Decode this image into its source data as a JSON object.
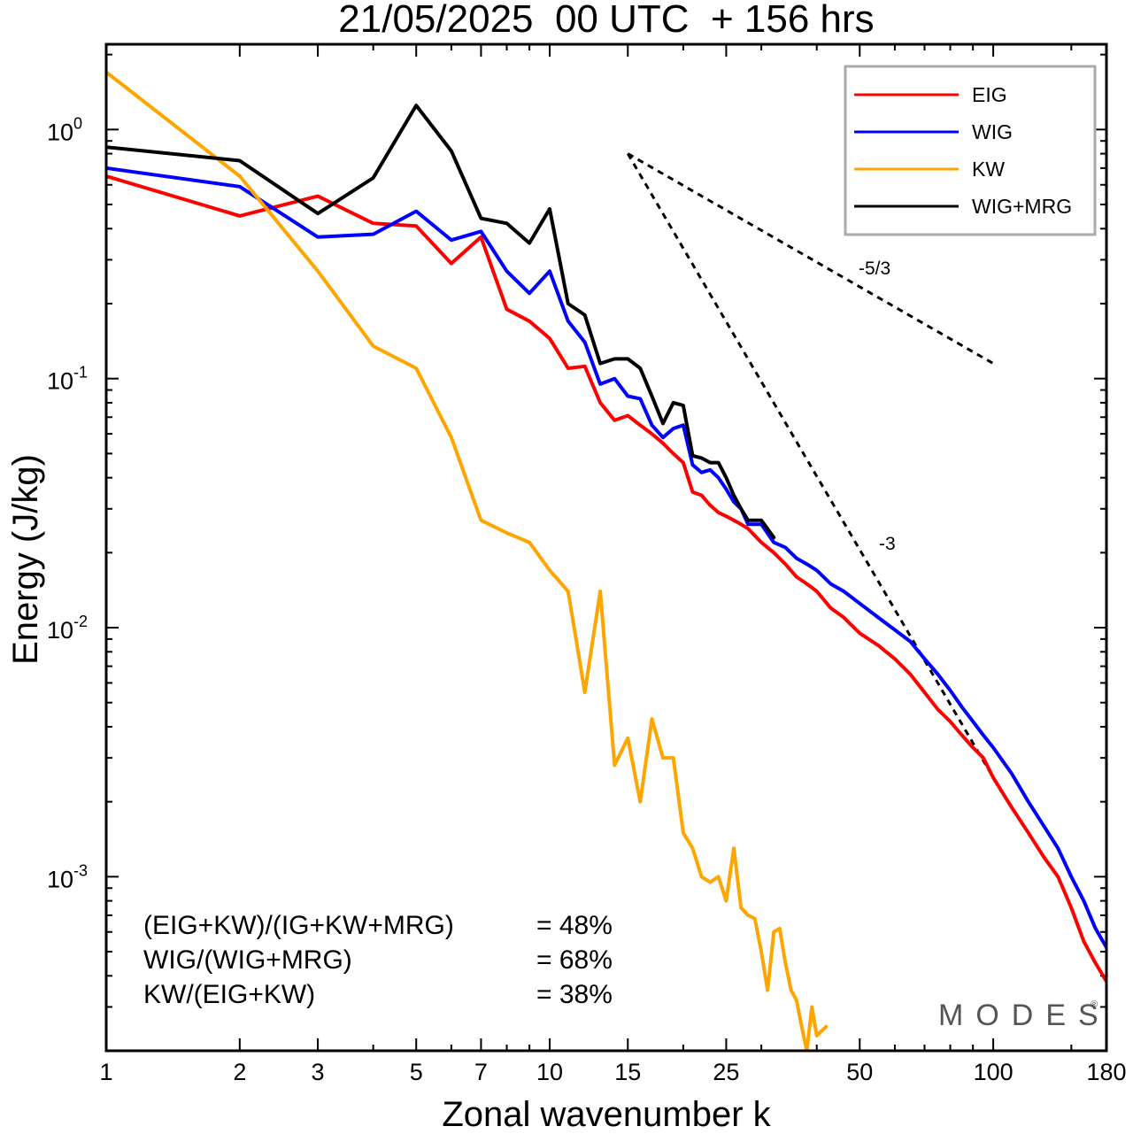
{
  "chart_data": {
    "type": "line",
    "title": "21/05/2025  00 UTC  + 156 hrs",
    "xlabel": "Zonal wavenumber k",
    "ylabel": "Energy (J/kg)",
    "xscale": "log",
    "yscale": "log",
    "xlim": [
      1,
      180
    ],
    "ylim": [
      0.0002,
      2.2
    ],
    "x_ticks": [
      1,
      2,
      3,
      5,
      7,
      10,
      15,
      25,
      50,
      100,
      180
    ],
    "y_ticks": [
      {
        "base": "10",
        "exp": "0",
        "value": 1
      },
      {
        "base": "10",
        "exp": "-1",
        "value": 0.1
      },
      {
        "base": "10",
        "exp": "-2",
        "value": 0.01
      },
      {
        "base": "10",
        "exp": "-3",
        "value": 0.001
      }
    ],
    "grid": false,
    "legend_position": "top-right",
    "series": [
      {
        "name": "EIG",
        "color": "#ff0000",
        "points": [
          [
            1,
            0.65
          ],
          [
            2,
            0.45
          ],
          [
            3,
            0.54
          ],
          [
            4,
            0.42
          ],
          [
            5,
            0.41
          ],
          [
            6,
            0.29
          ],
          [
            7,
            0.37
          ],
          [
            8,
            0.19
          ],
          [
            9,
            0.17
          ],
          [
            10,
            0.145
          ],
          [
            11,
            0.11
          ],
          [
            12,
            0.112
          ],
          [
            13,
            0.08
          ],
          [
            14,
            0.068
          ],
          [
            15,
            0.071
          ],
          [
            16,
            0.065
          ],
          [
            17,
            0.06
          ],
          [
            18,
            0.055
          ],
          [
            19,
            0.05
          ],
          [
            20,
            0.046
          ],
          [
            21,
            0.035
          ],
          [
            22,
            0.034
          ],
          [
            23,
            0.031
          ],
          [
            24,
            0.029
          ],
          [
            25,
            0.028
          ],
          [
            26,
            0.027
          ],
          [
            27,
            0.026
          ],
          [
            28,
            0.025
          ],
          [
            30,
            0.022
          ],
          [
            32,
            0.02
          ],
          [
            34,
            0.018
          ],
          [
            36,
            0.016
          ],
          [
            38,
            0.015
          ],
          [
            40,
            0.014
          ],
          [
            43,
            0.012
          ],
          [
            46,
            0.011
          ],
          [
            50,
            0.0095
          ],
          [
            55,
            0.0085
          ],
          [
            60,
            0.0075
          ],
          [
            65,
            0.0065
          ],
          [
            70,
            0.0055
          ],
          [
            75,
            0.0047
          ],
          [
            80,
            0.0042
          ],
          [
            85,
            0.0037
          ],
          [
            90,
            0.0033
          ],
          [
            95,
            0.003
          ],
          [
            100,
            0.0025
          ],
          [
            110,
            0.0019
          ],
          [
            120,
            0.0015
          ],
          [
            130,
            0.0012
          ],
          [
            140,
            0.001
          ],
          [
            150,
            0.00075
          ],
          [
            160,
            0.00055
          ],
          [
            170,
            0.00045
          ],
          [
            180,
            0.00038
          ]
        ]
      },
      {
        "name": "WIG",
        "color": "#0000ff",
        "points": [
          [
            1,
            0.7
          ],
          [
            2,
            0.59
          ],
          [
            3,
            0.37
          ],
          [
            4,
            0.38
          ],
          [
            5,
            0.47
          ],
          [
            6,
            0.36
          ],
          [
            7,
            0.39
          ],
          [
            8,
            0.27
          ],
          [
            9,
            0.22
          ],
          [
            10,
            0.27
          ],
          [
            11,
            0.17
          ],
          [
            12,
            0.14
          ],
          [
            13,
            0.095
          ],
          [
            14,
            0.1
          ],
          [
            15,
            0.085
          ],
          [
            16,
            0.083
          ],
          [
            17,
            0.065
          ],
          [
            18,
            0.058
          ],
          [
            19,
            0.063
          ],
          [
            20,
            0.065
          ],
          [
            21,
            0.045
          ],
          [
            22,
            0.042
          ],
          [
            23,
            0.043
          ],
          [
            24,
            0.04
          ],
          [
            25,
            0.036
          ],
          [
            26,
            0.032
          ],
          [
            27,
            0.03
          ],
          [
            28,
            0.026
          ],
          [
            30,
            0.026
          ],
          [
            32,
            0.022
          ],
          [
            34,
            0.021
          ],
          [
            36,
            0.019
          ],
          [
            38,
            0.018
          ],
          [
            40,
            0.017
          ],
          [
            43,
            0.015
          ],
          [
            46,
            0.014
          ],
          [
            50,
            0.0125
          ],
          [
            55,
            0.011
          ],
          [
            60,
            0.0098
          ],
          [
            65,
            0.0088
          ],
          [
            70,
            0.0075
          ],
          [
            75,
            0.0065
          ],
          [
            80,
            0.0056
          ],
          [
            85,
            0.0048
          ],
          [
            90,
            0.0042
          ],
          [
            95,
            0.0037
          ],
          [
            100,
            0.0033
          ],
          [
            110,
            0.0026
          ],
          [
            120,
            0.002
          ],
          [
            130,
            0.0016
          ],
          [
            140,
            0.0013
          ],
          [
            150,
            0.001
          ],
          [
            160,
            0.0008
          ],
          [
            170,
            0.00062
          ],
          [
            180,
            0.00052
          ]
        ]
      },
      {
        "name": "KW",
        "color": "#ffa500",
        "points": [
          [
            1,
            1.7
          ],
          [
            2,
            0.65
          ],
          [
            3,
            0.27
          ],
          [
            4,
            0.135
          ],
          [
            5,
            0.11
          ],
          [
            6,
            0.058
          ],
          [
            7,
            0.027
          ],
          [
            8,
            0.024
          ],
          [
            9,
            0.022
          ],
          [
            10,
            0.017
          ],
          [
            11,
            0.014
          ],
          [
            12,
            0.0055
          ],
          [
            13,
            0.014
          ],
          [
            14,
            0.0028
          ],
          [
            15,
            0.0036
          ],
          [
            16,
            0.002
          ],
          [
            17,
            0.0043
          ],
          [
            18,
            0.003
          ],
          [
            19,
            0.003
          ],
          [
            20,
            0.0015
          ],
          [
            21,
            0.0013
          ],
          [
            22,
            0.001
          ],
          [
            23,
            0.00095
          ],
          [
            24,
            0.001
          ],
          [
            25,
            0.0008
          ],
          [
            26,
            0.0013
          ],
          [
            27,
            0.00075
          ],
          [
            28,
            0.0007
          ],
          [
            29,
            0.00068
          ],
          [
            30,
            0.0005
          ],
          [
            31,
            0.00035
          ],
          [
            32,
            0.0006
          ],
          [
            33,
            0.00062
          ],
          [
            34,
            0.00045
          ],
          [
            35,
            0.00035
          ],
          [
            36,
            0.00032
          ],
          [
            37,
            0.00025
          ],
          [
            38,
            0.0002
          ],
          [
            39,
            0.0003
          ],
          [
            40,
            0.00023
          ],
          [
            42,
            0.00025
          ]
        ]
      },
      {
        "name": "WIG+MRG",
        "color": "#000000",
        "points": [
          [
            1,
            0.85
          ],
          [
            2,
            0.75
          ],
          [
            3,
            0.46
          ],
          [
            4,
            0.64
          ],
          [
            5,
            1.25
          ],
          [
            6,
            0.82
          ],
          [
            7,
            0.44
          ],
          [
            8,
            0.42
          ],
          [
            9,
            0.35
          ],
          [
            10,
            0.48
          ],
          [
            11,
            0.2
          ],
          [
            12,
            0.18
          ],
          [
            13,
            0.115
          ],
          [
            14,
            0.12
          ],
          [
            15,
            0.12
          ],
          [
            16,
            0.11
          ],
          [
            17,
            0.085
          ],
          [
            18,
            0.066
          ],
          [
            19,
            0.08
          ],
          [
            20,
            0.078
          ],
          [
            21,
            0.049
          ],
          [
            22,
            0.048
          ],
          [
            23,
            0.046
          ],
          [
            24,
            0.046
          ],
          [
            25,
            0.04
          ],
          [
            26,
            0.034
          ],
          [
            27,
            0.03
          ],
          [
            28,
            0.027
          ],
          [
            30,
            0.027
          ],
          [
            32,
            0.023
          ]
        ]
      }
    ],
    "reference_slopes": [
      {
        "label": "-5/3",
        "from": [
          15,
          0.8
        ],
        "to": [
          100,
          0.115
        ]
      },
      {
        "label": "-3",
        "from": [
          15,
          0.8
        ],
        "to": [
          100,
          0.0025
        ]
      }
    ],
    "annotations": [
      {
        "label": "(EIG+KW)/(IG+KW+MRG)",
        "value": "= 48%"
      },
      {
        "label": "WIG/(WIG+MRG)",
        "value": "= 68%"
      },
      {
        "label": "KW/(EIG+KW)",
        "value": "= 38%"
      }
    ]
  },
  "watermark": "MODES",
  "watermark_mark": "®"
}
